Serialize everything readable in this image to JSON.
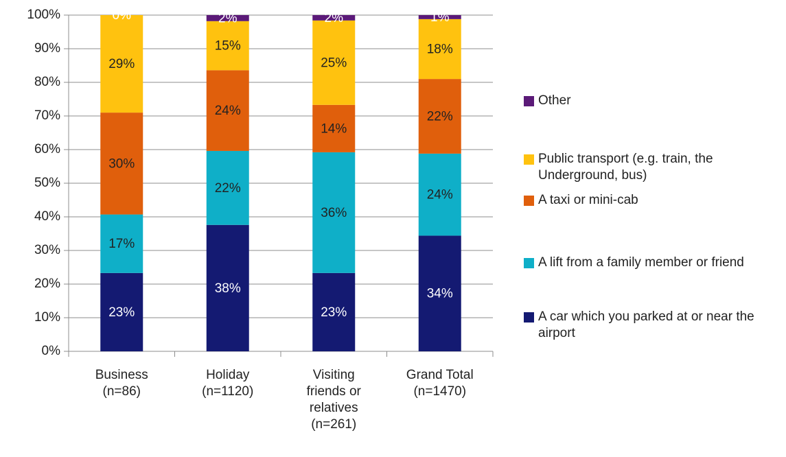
{
  "chart_data": {
    "type": "stacked_bar",
    "categories": [
      "Business\n(n=86)",
      "Holiday\n(n=1120)",
      "Visiting\nfriends or\nrelatives\n(n=261)",
      "Grand Total\n(n=1470)"
    ],
    "series": [
      {
        "name": "A car which you parked at or near the airport",
        "color": "#141a72",
        "values": [
          23.3,
          37.6,
          23.3,
          34.4
        ],
        "value_labels": [
          "23%",
          "38%",
          "23%",
          "34%"
        ]
      },
      {
        "name": "A lift from a family member or friend",
        "color": "#0fafc8",
        "values": [
          17.4,
          22.0,
          35.9,
          24.4
        ],
        "value_labels": [
          "17%",
          "22%",
          "36%",
          "24%"
        ]
      },
      {
        "name": "A taxi or mini-cab",
        "color": "#e05f0c",
        "values": [
          30.3,
          24.0,
          14.1,
          22.2
        ],
        "value_labels": [
          "30%",
          "24%",
          "14%",
          "22%"
        ]
      },
      {
        "name": "Public transport (e.g. train, the Underground, bus)",
        "color": "#ffc20f",
        "values": [
          29.0,
          14.6,
          25.1,
          17.8
        ],
        "value_labels": [
          "29%",
          "15%",
          "25%",
          "18%"
        ]
      },
      {
        "name": "Other",
        "color": "#5b1a78",
        "values": [
          0,
          1.8,
          1.6,
          1.2
        ],
        "value_labels": [
          "0%",
          "2%",
          "2%",
          "1%"
        ]
      }
    ],
    "ylim": [
      0,
      100
    ],
    "yticks": [
      {
        "value": 0,
        "label": "0%"
      },
      {
        "value": 10,
        "label": "10%"
      },
      {
        "value": 20,
        "label": "20%"
      },
      {
        "value": 30,
        "label": "30%"
      },
      {
        "value": 40,
        "label": "40%"
      },
      {
        "value": 50,
        "label": "50%"
      },
      {
        "value": 60,
        "label": "60%"
      },
      {
        "value": 70,
        "label": "70%"
      },
      {
        "value": 80,
        "label": "80%"
      },
      {
        "value": 90,
        "label": "90%"
      },
      {
        "value": 100,
        "label": "100%"
      }
    ],
    "grid": true,
    "legend": "right"
  }
}
